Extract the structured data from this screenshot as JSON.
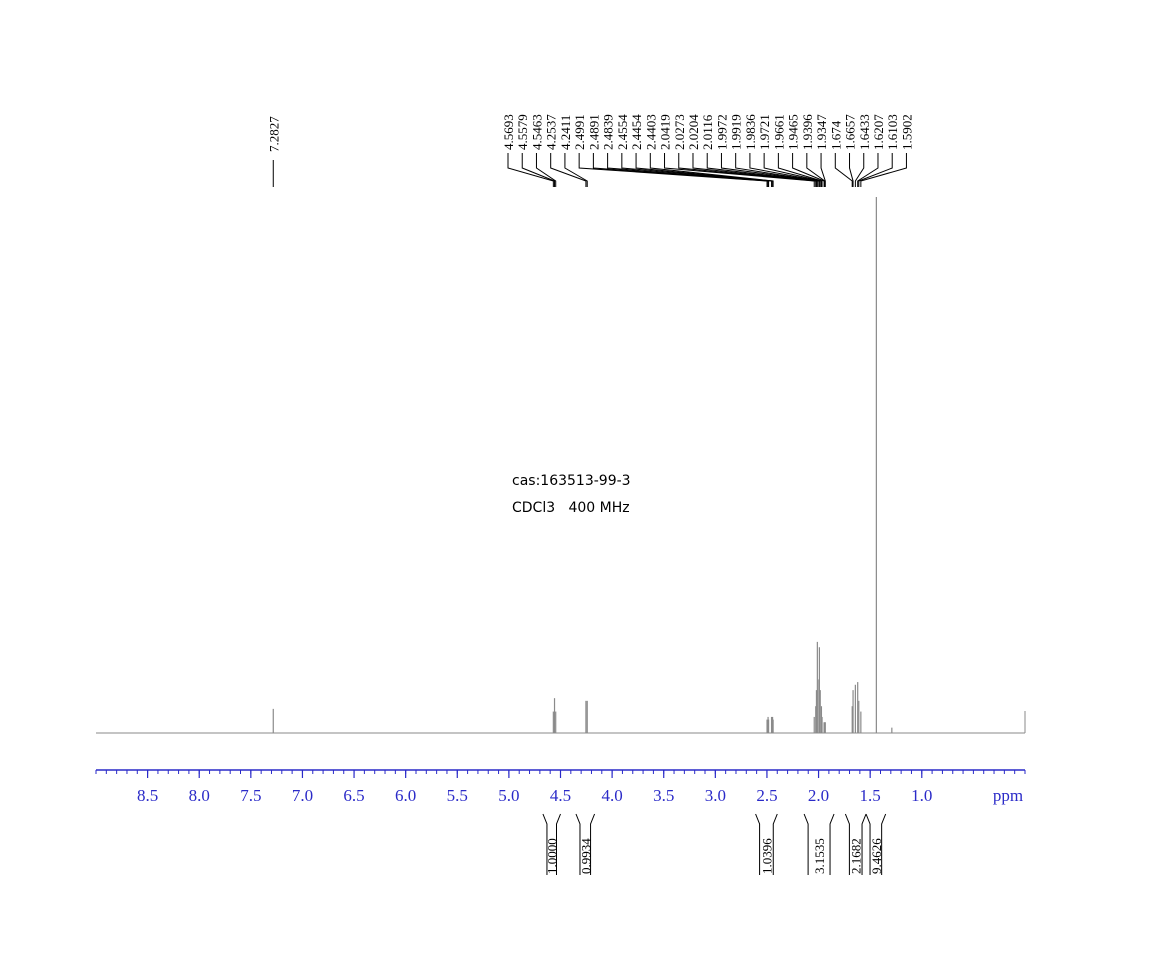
{
  "chart_data": {
    "type": "nmr",
    "annotations": [
      "cas:163513-99-3",
      "CDCl3   400 MHz"
    ],
    "x_label": "ppm",
    "xlim": [
      9.0,
      0.0
    ],
    "xticks": [
      8.5,
      {
        "value": 8,
        "label": "8.0"
      },
      7.5,
      {
        "value": 7,
        "label": "7.0"
      },
      6.5,
      {
        "value": 6,
        "label": "6.0"
      },
      5.5,
      {
        "value": 5,
        "label": "5.0"
      },
      4.5,
      {
        "value": 4,
        "label": "4.0"
      },
      3.5,
      {
        "value": 3,
        "label": "3.0"
      },
      2.5,
      {
        "value": 2,
        "label": "2.0"
      },
      1.5,
      {
        "value": 1,
        "label": "1.0"
      }
    ],
    "minor_ticks_per_major": 5,
    "ylim": [
      0,
      100
    ],
    "color": "#8a8a8a",
    "axis_color": "#2a2ac8",
    "signals": {
      "x": [
        7.2827,
        4.5693,
        4.5579,
        4.5463,
        4.2537,
        4.2411,
        2.4991,
        2.4891,
        2.4839,
        2.4554,
        2.4454,
        2.4403,
        2.0419,
        2.0273,
        2.0204,
        2.0116,
        1.9972,
        1.9919,
        1.9836,
        1.9721,
        1.9661,
        1.9465,
        1.9396,
        1.9347,
        1.674,
        1.6657,
        1.6433,
        1.6207,
        1.6103,
        1.5902,
        1.44,
        1.29
      ],
      "values": [
        4.5,
        4,
        6.5,
        4,
        6,
        6,
        2.5,
        3,
        2.5,
        3,
        3,
        2.5,
        3,
        5,
        8,
        17,
        10,
        16,
        8,
        5,
        3,
        2,
        2,
        2,
        5,
        8,
        9,
        9.5,
        6,
        4,
        100,
        1
      ]
    },
    "peak_labels": [
      7.2827,
      4.5693,
      4.5579,
      4.5463,
      4.2537,
      4.2411,
      2.4991,
      2.4891,
      2.4839,
      2.4554,
      2.4454,
      2.4403,
      2.0419,
      2.0273,
      2.0204,
      2.0116,
      1.9972,
      1.9919,
      1.9836,
      1.9721,
      1.9661,
      1.9465,
      1.9396,
      1.9347,
      1.674,
      1.6657,
      1.6433,
      1.6207,
      1.6103,
      1.5902
    ],
    "integrals": {
      "ranges": [
        [
          4.67,
          4.5
        ],
        [
          4.35,
          4.17
        ],
        [
          2.61,
          2.4
        ],
        [
          2.14,
          1.85
        ],
        [
          1.74,
          1.54
        ],
        [
          1.54,
          1.35
        ]
      ],
      "values": [
        1,
        0.9934,
        1.0396,
        3.1535,
        2.1682,
        9.4626
      ],
      "value_labels": [
        "1.0000",
        "0.9934",
        "1.0396",
        "3.1535",
        "2.1682",
        "9.4626"
      ]
    }
  }
}
